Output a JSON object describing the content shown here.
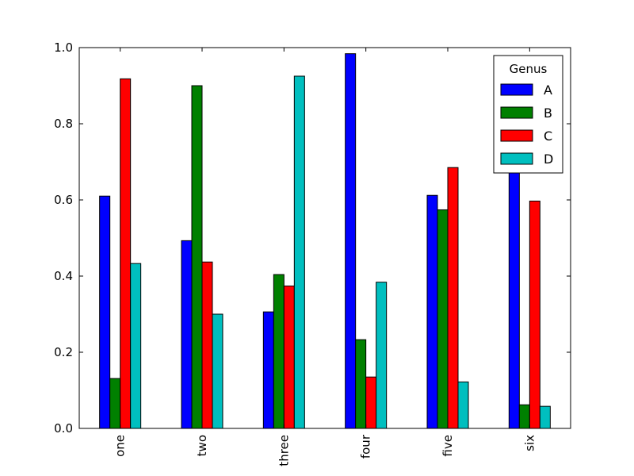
{
  "chart_data": {
    "type": "bar",
    "categories": [
      "one",
      "two",
      "three",
      "four",
      "five",
      "six"
    ],
    "series": [
      {
        "name": "A",
        "color": "#0000ff",
        "values": [
          0.61,
          0.493,
          0.306,
          0.984,
          0.612,
          0.755
        ]
      },
      {
        "name": "B",
        "color": "#008000",
        "values": [
          0.131,
          0.9,
          0.404,
          0.233,
          0.574,
          0.062
        ]
      },
      {
        "name": "C",
        "color": "#ff0000",
        "values": [
          0.918,
          0.437,
          0.374,
          0.135,
          0.685,
          0.597
        ]
      },
      {
        "name": "D",
        "color": "#00bfbf",
        "values": [
          0.433,
          0.3,
          0.925,
          0.384,
          0.122,
          0.058
        ]
      }
    ],
    "ylim": [
      0.0,
      1.0
    ],
    "yticks": [
      "0.0",
      "0.2",
      "0.4",
      "0.6",
      "0.8",
      "1.0"
    ],
    "xlabel": "",
    "ylabel": "",
    "title": "",
    "legend": {
      "title": "Genus",
      "placement": "upper right"
    },
    "grid": false
  }
}
